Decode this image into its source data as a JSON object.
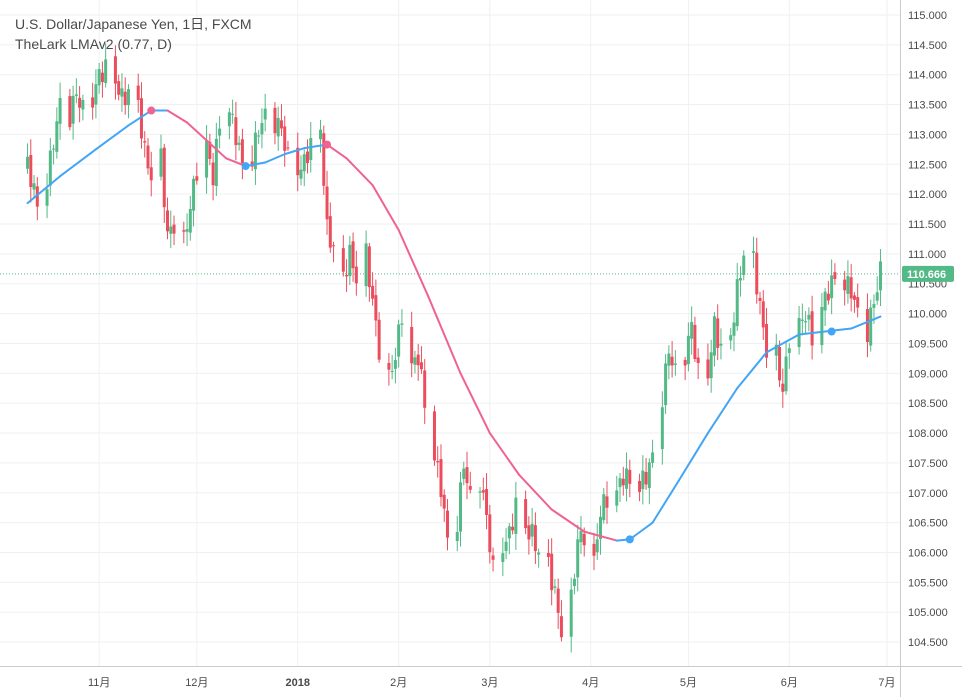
{
  "header": {
    "symbol_line": "U.S. Dollar/Japanese Yen, 1日, FXCM",
    "indicator_line": "TheLark LMAv2 (0.77, D)"
  },
  "colors": {
    "up": "#53b987",
    "down": "#eb4d5c",
    "ma_up": "#42a5f5",
    "ma_down": "#f06292",
    "grid": "#eef0f2",
    "last_price_line": "#53b987",
    "last_price_badge": "#53b987"
  },
  "chart_data": {
    "type": "candlestick",
    "symbol": "USDJPY",
    "interval": "1D",
    "source": "FXCM",
    "ylim": [
      104.1,
      115.15
    ],
    "y_ticks": [
      "104.500",
      "105.000",
      "105.500",
      "106.000",
      "106.500",
      "107.000",
      "107.500",
      "108.000",
      "108.500",
      "109.000",
      "109.500",
      "110.000",
      "110.500",
      "111.000",
      "111.500",
      "112.000",
      "112.500",
      "113.000",
      "113.500",
      "114.000",
      "114.500",
      "115.000"
    ],
    "x_ticks": [
      {
        "label": "11月",
        "date": "2017-11-01",
        "bold": false
      },
      {
        "label": "12月",
        "date": "2017-12-01",
        "bold": false
      },
      {
        "label": "2018",
        "date": "2018-01-01",
        "bold": true
      },
      {
        "label": "2月",
        "date": "2018-02-01",
        "bold": false
      },
      {
        "label": "3月",
        "date": "2018-03-01",
        "bold": false
      },
      {
        "label": "4月",
        "date": "2018-04-01",
        "bold": false
      },
      {
        "label": "5月",
        "date": "2018-05-01",
        "bold": false
      },
      {
        "label": "6月",
        "date": "2018-06-01",
        "bold": false
      },
      {
        "label": "7月",
        "date": "2018-07-01",
        "bold": false
      }
    ],
    "last_price": "110.666",
    "close_path": [
      [
        "2017-10-10",
        112.5
      ],
      [
        "2017-10-11",
        112.3
      ],
      [
        "2017-10-13",
        111.8
      ],
      [
        "2017-10-16",
        112.2
      ],
      [
        "2017-10-18",
        112.9
      ],
      [
        "2017-10-20",
        113.5
      ],
      [
        "2017-10-23",
        113.3
      ],
      [
        "2017-10-25",
        113.7
      ],
      [
        "2017-10-27",
        113.4
      ],
      [
        "2017-10-30",
        113.6
      ],
      [
        "2017-11-01",
        114.0
      ],
      [
        "2017-11-03",
        114.1
      ],
      [
        "2017-11-06",
        113.9
      ],
      [
        "2017-11-08",
        113.6
      ],
      [
        "2017-11-10",
        113.7
      ],
      [
        "2017-11-13",
        113.5
      ],
      [
        "2017-11-15",
        112.7
      ],
      [
        "2017-11-17",
        112.3
      ],
      [
        "2017-11-20",
        112.6
      ],
      [
        "2017-11-22",
        111.3
      ],
      [
        "2017-11-24",
        111.5
      ],
      [
        "2017-11-27",
        111.2
      ],
      [
        "2017-11-29",
        111.8
      ],
      [
        "2017-12-01",
        112.4
      ],
      [
        "2017-12-04",
        112.8
      ],
      [
        "2017-12-06",
        112.3
      ],
      [
        "2017-12-08",
        113.2
      ],
      [
        "2017-12-11",
        113.4
      ],
      [
        "2017-12-13",
        113.0
      ],
      [
        "2017-12-15",
        112.5
      ],
      [
        "2017-12-18",
        112.6
      ],
      [
        "2017-12-20",
        113.1
      ],
      [
        "2017-12-22",
        113.3
      ],
      [
        "2017-12-25",
        113.2
      ],
      [
        "2017-12-27",
        113.1
      ],
      [
        "2017-12-29",
        112.6
      ],
      [
        "2018-01-02",
        112.4
      ],
      [
        "2018-01-04",
        112.7
      ],
      [
        "2018-01-08",
        113.1
      ],
      [
        "2018-01-10",
        111.4
      ],
      [
        "2018-01-12",
        111.1
      ],
      [
        "2018-01-15",
        110.6
      ],
      [
        "2018-01-17",
        111.0
      ],
      [
        "2018-01-19",
        110.6
      ],
      [
        "2018-01-22",
        111.0
      ],
      [
        "2018-01-24",
        110.2
      ],
      [
        "2018-01-26",
        109.4
      ],
      [
        "2018-01-29",
        108.9
      ],
      [
        "2018-01-31",
        109.3
      ],
      [
        "2018-02-02",
        110.0
      ],
      [
        "2018-02-05",
        109.1
      ],
      [
        "2018-02-07",
        109.3
      ],
      [
        "2018-02-09",
        108.5
      ],
      [
        "2018-02-12",
        107.6
      ],
      [
        "2018-02-14",
        107.1
      ],
      [
        "2018-02-16",
        106.2
      ],
      [
        "2018-02-19",
        106.5
      ],
      [
        "2018-02-21",
        107.5
      ],
      [
        "2018-02-23",
        106.9
      ],
      [
        "2018-02-26",
        107.2
      ],
      [
        "2018-02-28",
        106.6
      ],
      [
        "2018-03-02",
        105.7
      ],
      [
        "2018-03-05",
        106.1
      ],
      [
        "2018-03-07",
        106.3
      ],
      [
        "2018-03-09",
        106.8
      ],
      [
        "2018-03-12",
        106.4
      ],
      [
        "2018-03-14",
        106.3
      ],
      [
        "2018-03-16",
        106.0
      ],
      [
        "2018-03-19",
        105.8
      ],
      [
        "2018-03-21",
        105.3
      ],
      [
        "2018-03-23",
        104.7
      ],
      [
        "2018-03-26",
        105.2
      ],
      [
        "2018-03-28",
        106.2
      ],
      [
        "2018-03-30",
        106.3
      ],
      [
        "2018-04-02",
        105.8
      ],
      [
        "2018-04-04",
        106.7
      ],
      [
        "2018-04-06",
        106.9
      ],
      [
        "2018-04-09",
        107.0
      ],
      [
        "2018-04-11",
        107.3
      ],
      [
        "2018-04-13",
        107.2
      ],
      [
        "2018-04-16",
        107.1
      ],
      [
        "2018-04-18",
        107.3
      ],
      [
        "2018-04-20",
        107.6
      ],
      [
        "2018-04-23",
        108.6
      ],
      [
        "2018-04-25",
        109.4
      ],
      [
        "2018-04-27",
        109.0
      ],
      [
        "2018-04-30",
        109.3
      ],
      [
        "2018-05-02",
        109.8
      ],
      [
        "2018-05-04",
        109.0
      ],
      [
        "2018-05-07",
        109.0
      ],
      [
        "2018-05-09",
        109.8
      ],
      [
        "2018-05-11",
        109.4
      ],
      [
        "2018-05-14",
        109.6
      ],
      [
        "2018-05-16",
        110.4
      ],
      [
        "2018-05-18",
        111.0
      ],
      [
        "2018-05-21",
        110.9
      ],
      [
        "2018-05-23",
        110.1
      ],
      [
        "2018-05-25",
        109.4
      ],
      [
        "2018-05-28",
        109.3
      ],
      [
        "2018-05-30",
        108.7
      ],
      [
        "2018-06-01",
        109.6
      ],
      [
        "2018-06-04",
        109.8
      ],
      [
        "2018-06-06",
        110.0
      ],
      [
        "2018-06-08",
        109.6
      ],
      [
        "2018-06-11",
        110.1
      ],
      [
        "2018-06-13",
        110.4
      ],
      [
        "2018-06-15",
        110.6
      ],
      [
        "2018-06-18",
        110.5
      ],
      [
        "2018-06-20",
        110.4
      ],
      [
        "2018-06-22",
        110.0
      ],
      [
        "2018-06-25",
        109.7
      ],
      [
        "2018-06-27",
        110.2
      ],
      [
        "2018-06-29",
        110.7
      ]
    ],
    "ma_path": [
      [
        "2017-10-10",
        111.85
      ],
      [
        "2017-10-20",
        112.3
      ],
      [
        "2017-10-31",
        112.75
      ],
      [
        "2017-11-10",
        113.15
      ],
      [
        "2017-11-17",
        113.4
      ],
      [
        "2017-11-22",
        113.4
      ],
      [
        "2017-11-28",
        113.2
      ],
      [
        "2017-12-04",
        112.9
      ],
      [
        "2017-12-10",
        112.6
      ],
      [
        "2017-12-16",
        112.47
      ],
      [
        "2017-12-22",
        112.53
      ],
      [
        "2017-12-28",
        112.67
      ],
      [
        "2018-01-03",
        112.77
      ],
      [
        "2018-01-10",
        112.83
      ],
      [
        "2018-01-16",
        112.6
      ],
      [
        "2018-01-24",
        112.15
      ],
      [
        "2018-02-01",
        111.4
      ],
      [
        "2018-02-10",
        110.3
      ],
      [
        "2018-02-20",
        109.0
      ],
      [
        "2018-03-01",
        108.0
      ],
      [
        "2018-03-10",
        107.3
      ],
      [
        "2018-03-20",
        106.72
      ],
      [
        "2018-03-30",
        106.35
      ],
      [
        "2018-04-09",
        106.2
      ],
      [
        "2018-04-13",
        106.22
      ],
      [
        "2018-04-20",
        106.5
      ],
      [
        "2018-04-28",
        107.2
      ],
      [
        "2018-05-07",
        108.0
      ],
      [
        "2018-05-16",
        108.75
      ],
      [
        "2018-05-25",
        109.35
      ],
      [
        "2018-06-04",
        109.65
      ],
      [
        "2018-06-12",
        109.7
      ],
      [
        "2018-06-20",
        109.75
      ],
      [
        "2018-06-29",
        109.95
      ]
    ],
    "ma_markers": [
      {
        "date": "2017-11-17",
        "value": 113.4,
        "trend": "down"
      },
      {
        "date": "2017-12-16",
        "value": 112.47,
        "trend": "up"
      },
      {
        "date": "2018-01-10",
        "value": 112.83,
        "trend": "down"
      },
      {
        "date": "2018-04-13",
        "value": 106.22,
        "trend": "up"
      },
      {
        "date": "2018-06-14",
        "value": 109.7,
        "trend": "up"
      }
    ]
  }
}
